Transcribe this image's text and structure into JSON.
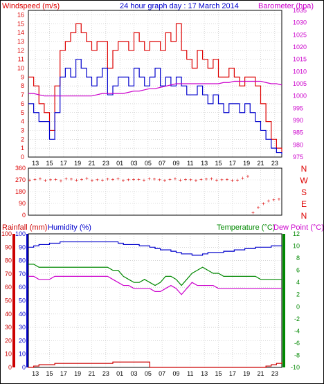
{
  "title": "24 hour graph day : 17 March 2014",
  "colors": {
    "wind": "#dd0000",
    "gust": "#dd0000",
    "avg": "#0000cc",
    "baro": "#cc00cc",
    "dir": "#dd0000",
    "rain": "#cc0000",
    "humidity": "#0000cc",
    "temperature": "#008800",
    "dewpoint": "#cc00cc",
    "grid": "#bfbfbf",
    "frame": "#000000"
  },
  "x_ticks": [
    "13",
    "15",
    "17",
    "19",
    "21",
    "23",
    "01",
    "03",
    "05",
    "07",
    "09",
    "11",
    "13",
    "15",
    "17",
    "19",
    "21",
    "23"
  ],
  "chart_data": [
    {
      "type": "line",
      "title": "24 hour graph day : 17 March 2014",
      "ylabel_left": "Windspeed (m/s)",
      "ylabel_right": "Barometer (hpa)",
      "left_ticks": [
        "0",
        "1",
        "2",
        "3",
        "4",
        "5",
        "6",
        "7",
        "8",
        "9",
        "10",
        "11",
        "12",
        "13",
        "14",
        "15",
        "16"
      ],
      "right_ticks": [
        "975",
        "980",
        "985",
        "990",
        "995",
        "1000",
        "1005",
        "1010",
        "1015",
        "1020",
        "1025",
        "1030",
        "1035"
      ],
      "ylim_left": [
        0,
        16.5
      ],
      "ylim_right": [
        975,
        1035
      ],
      "x": [
        12,
        12.5,
        13,
        13.5,
        14,
        14.5,
        15,
        15.5,
        16,
        16.5,
        17,
        17.5,
        18,
        18.5,
        19,
        19.5,
        20,
        20.5,
        21,
        21.5,
        22,
        22.5,
        23,
        23.5,
        24,
        24.5,
        25,
        25.5,
        26,
        26.5,
        27,
        27.5,
        28,
        28.5,
        29,
        29.5,
        30,
        30.5,
        31,
        31.5,
        32,
        32.5,
        33,
        33.5,
        34,
        34.5,
        35,
        35.5,
        36
      ],
      "series": [
        {
          "name": "gust",
          "values": [
            9,
            8,
            6,
            5,
            3,
            8,
            12,
            13,
            14,
            15,
            14,
            13,
            12,
            13,
            13,
            10,
            12,
            13,
            13,
            12,
            14,
            13,
            12,
            13,
            13,
            12,
            14,
            13,
            15,
            12,
            11,
            10,
            12,
            11,
            10,
            11,
            9,
            9,
            10,
            9,
            8,
            9,
            9,
            8,
            6,
            4,
            2,
            1,
            0.5
          ]
        },
        {
          "name": "average",
          "values": [
            6,
            5,
            4,
            4,
            2,
            5,
            9,
            10,
            9,
            11,
            10,
            9,
            8,
            9,
            10,
            7,
            8,
            9,
            9,
            8,
            10,
            9,
            8,
            9,
            10,
            8,
            9,
            8,
            9,
            8,
            7,
            7,
            8,
            7,
            6,
            7,
            6,
            5,
            6,
            6,
            5,
            6,
            5,
            4,
            3,
            2,
            1,
            0.5,
            0.3
          ]
        },
        {
          "name": "barometer",
          "values": [
            1001,
            1001,
            1000.5,
            1000,
            1000,
            1000,
            1000,
            1000,
            1000,
            1000,
            1000,
            1000,
            1000,
            1000.5,
            1001,
            1001,
            1001,
            1001,
            1001,
            1001.5,
            1002,
            1002,
            1002.5,
            1003,
            1003,
            1003.5,
            1004,
            1004.5,
            1005,
            1005,
            1005,
            1005,
            1005,
            1005,
            1005,
            1005,
            1005,
            1005.5,
            1005.5,
            1006,
            1006,
            1006,
            1006,
            1006,
            1006,
            1005.5,
            1005,
            1005,
            1004.5
          ]
        }
      ]
    },
    {
      "type": "scatter",
      "ylabel_right": [
        "N",
        "W",
        "S",
        "E",
        "N"
      ],
      "left_ticks": [
        "360",
        "270",
        "180",
        "90",
        "0"
      ],
      "ylim": [
        0,
        360
      ],
      "series": [
        {
          "name": "direction",
          "values": [
            270,
            275,
            280,
            268,
            272,
            276,
            265,
            280,
            278,
            270,
            275,
            282,
            268,
            272,
            270,
            278,
            275,
            280,
            268,
            272,
            276,
            275,
            270,
            280,
            278,
            272,
            268,
            275,
            280,
            270,
            276,
            272,
            268,
            275,
            278,
            280,
            270,
            272,
            275,
            268,
            270,
            285,
            300,
            20,
            60,
            90,
            110,
            120,
            125
          ]
        }
      ]
    },
    {
      "type": "line",
      "ylabel_left": "Rainfall (mm)",
      "ylabel_left2": "Humidity (%)",
      "ylabel_right": "Temperature (°C)",
      "ylabel_right2": "Dew Point (°C)",
      "left_ticks": [
        "0",
        "10",
        "20",
        "30",
        "40",
        "50",
        "60",
        "70",
        "80",
        "90",
        "100"
      ],
      "right_ticks": [
        "-10",
        "-8",
        "-6",
        "-4",
        "-2",
        "0",
        "2",
        "4",
        "6",
        "8",
        "10",
        "12"
      ],
      "ylim_left": [
        0,
        100
      ],
      "ylim_right": [
        -10,
        12
      ],
      "series": [
        {
          "name": "humidity",
          "values": [
            90,
            91,
            92,
            92,
            93,
            93,
            94,
            94,
            94,
            94,
            94,
            94,
            94,
            94,
            94,
            94,
            94,
            93,
            92,
            92,
            92,
            91,
            91,
            90,
            89,
            88,
            88,
            87,
            86,
            85,
            85,
            84,
            84,
            85,
            86,
            86,
            86,
            87,
            87,
            88,
            88,
            89,
            89,
            90,
            90,
            90,
            91,
            91,
            91
          ]
        },
        {
          "name": "rainfall",
          "values": [
            0,
            1,
            2,
            2,
            2,
            3,
            3,
            3,
            3,
            3,
            3,
            3,
            3,
            3,
            3,
            3,
            4,
            4,
            4,
            4,
            4,
            4,
            4,
            0,
            0,
            0,
            0,
            0,
            0,
            0,
            0,
            0,
            0,
            0,
            0,
            0,
            0,
            0,
            0,
            0,
            0,
            0,
            0,
            0,
            0,
            1,
            2,
            3,
            4
          ]
        },
        {
          "name": "temperature",
          "values": [
            7,
            7,
            6.5,
            6.5,
            6.5,
            6.5,
            6.5,
            6.5,
            6.5,
            6.5,
            6.5,
            6.5,
            6.5,
            6.5,
            6.5,
            6.5,
            6,
            6,
            5,
            4.5,
            4,
            4,
            4.5,
            4,
            3.5,
            4,
            5,
            5,
            4.5,
            3.5,
            4.5,
            5.5,
            6,
            6.5,
            6,
            5.5,
            5.5,
            5,
            5,
            5,
            5,
            5,
            5,
            5,
            4.5,
            4.5,
            4.5,
            4.5,
            4.5
          ]
        },
        {
          "name": "dewpoint",
          "values": [
            5,
            5,
            4.5,
            4.5,
            4.5,
            5,
            5,
            5,
            5,
            5,
            5,
            5,
            5,
            5,
            5,
            5,
            4.5,
            4,
            3.5,
            3.5,
            3,
            3,
            3,
            3,
            2.5,
            2.5,
            3,
            3.5,
            3,
            2,
            3,
            4,
            3.5,
            3.5,
            3.5,
            3.5,
            3,
            3,
            3,
            3,
            3,
            3,
            3,
            3,
            3,
            3,
            3,
            3,
            3
          ]
        }
      ]
    }
  ]
}
